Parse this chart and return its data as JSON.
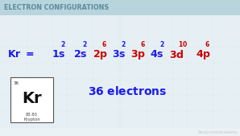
{
  "title": "ELECTRON CONFIGURATIONS",
  "title_color": "#5a8a9a",
  "title_bg_top": "#b8d5de",
  "title_bg_bot": "#d0e5ec",
  "bg_color": "#eaf2f5",
  "blue": "#1a1aee",
  "red": "#cc0000",
  "terms": [
    {
      "base": "1s",
      "sup": "2",
      "color": "blue"
    },
    {
      "base": "2s",
      "sup": "2",
      "color": "blue"
    },
    {
      "base": "2p",
      "sup": "6",
      "color": "red"
    },
    {
      "base": "3s",
      "sup": "2",
      "color": "blue"
    },
    {
      "base": "3p",
      "sup": "6",
      "color": "red"
    },
    {
      "base": "4s",
      "sup": "2",
      "color": "blue"
    },
    {
      "base": "3d",
      "sup": "10",
      "color": "red"
    },
    {
      "base": "4p",
      "sup": "6",
      "color": "red"
    }
  ],
  "electrons_text": "36 electrons",
  "element_symbol": "Kr",
  "element_name": "Krypton",
  "element_number": "36",
  "element_mass": "83.80",
  "watermark": "Study.com/academy",
  "watermark_color": "#aaaaaa"
}
